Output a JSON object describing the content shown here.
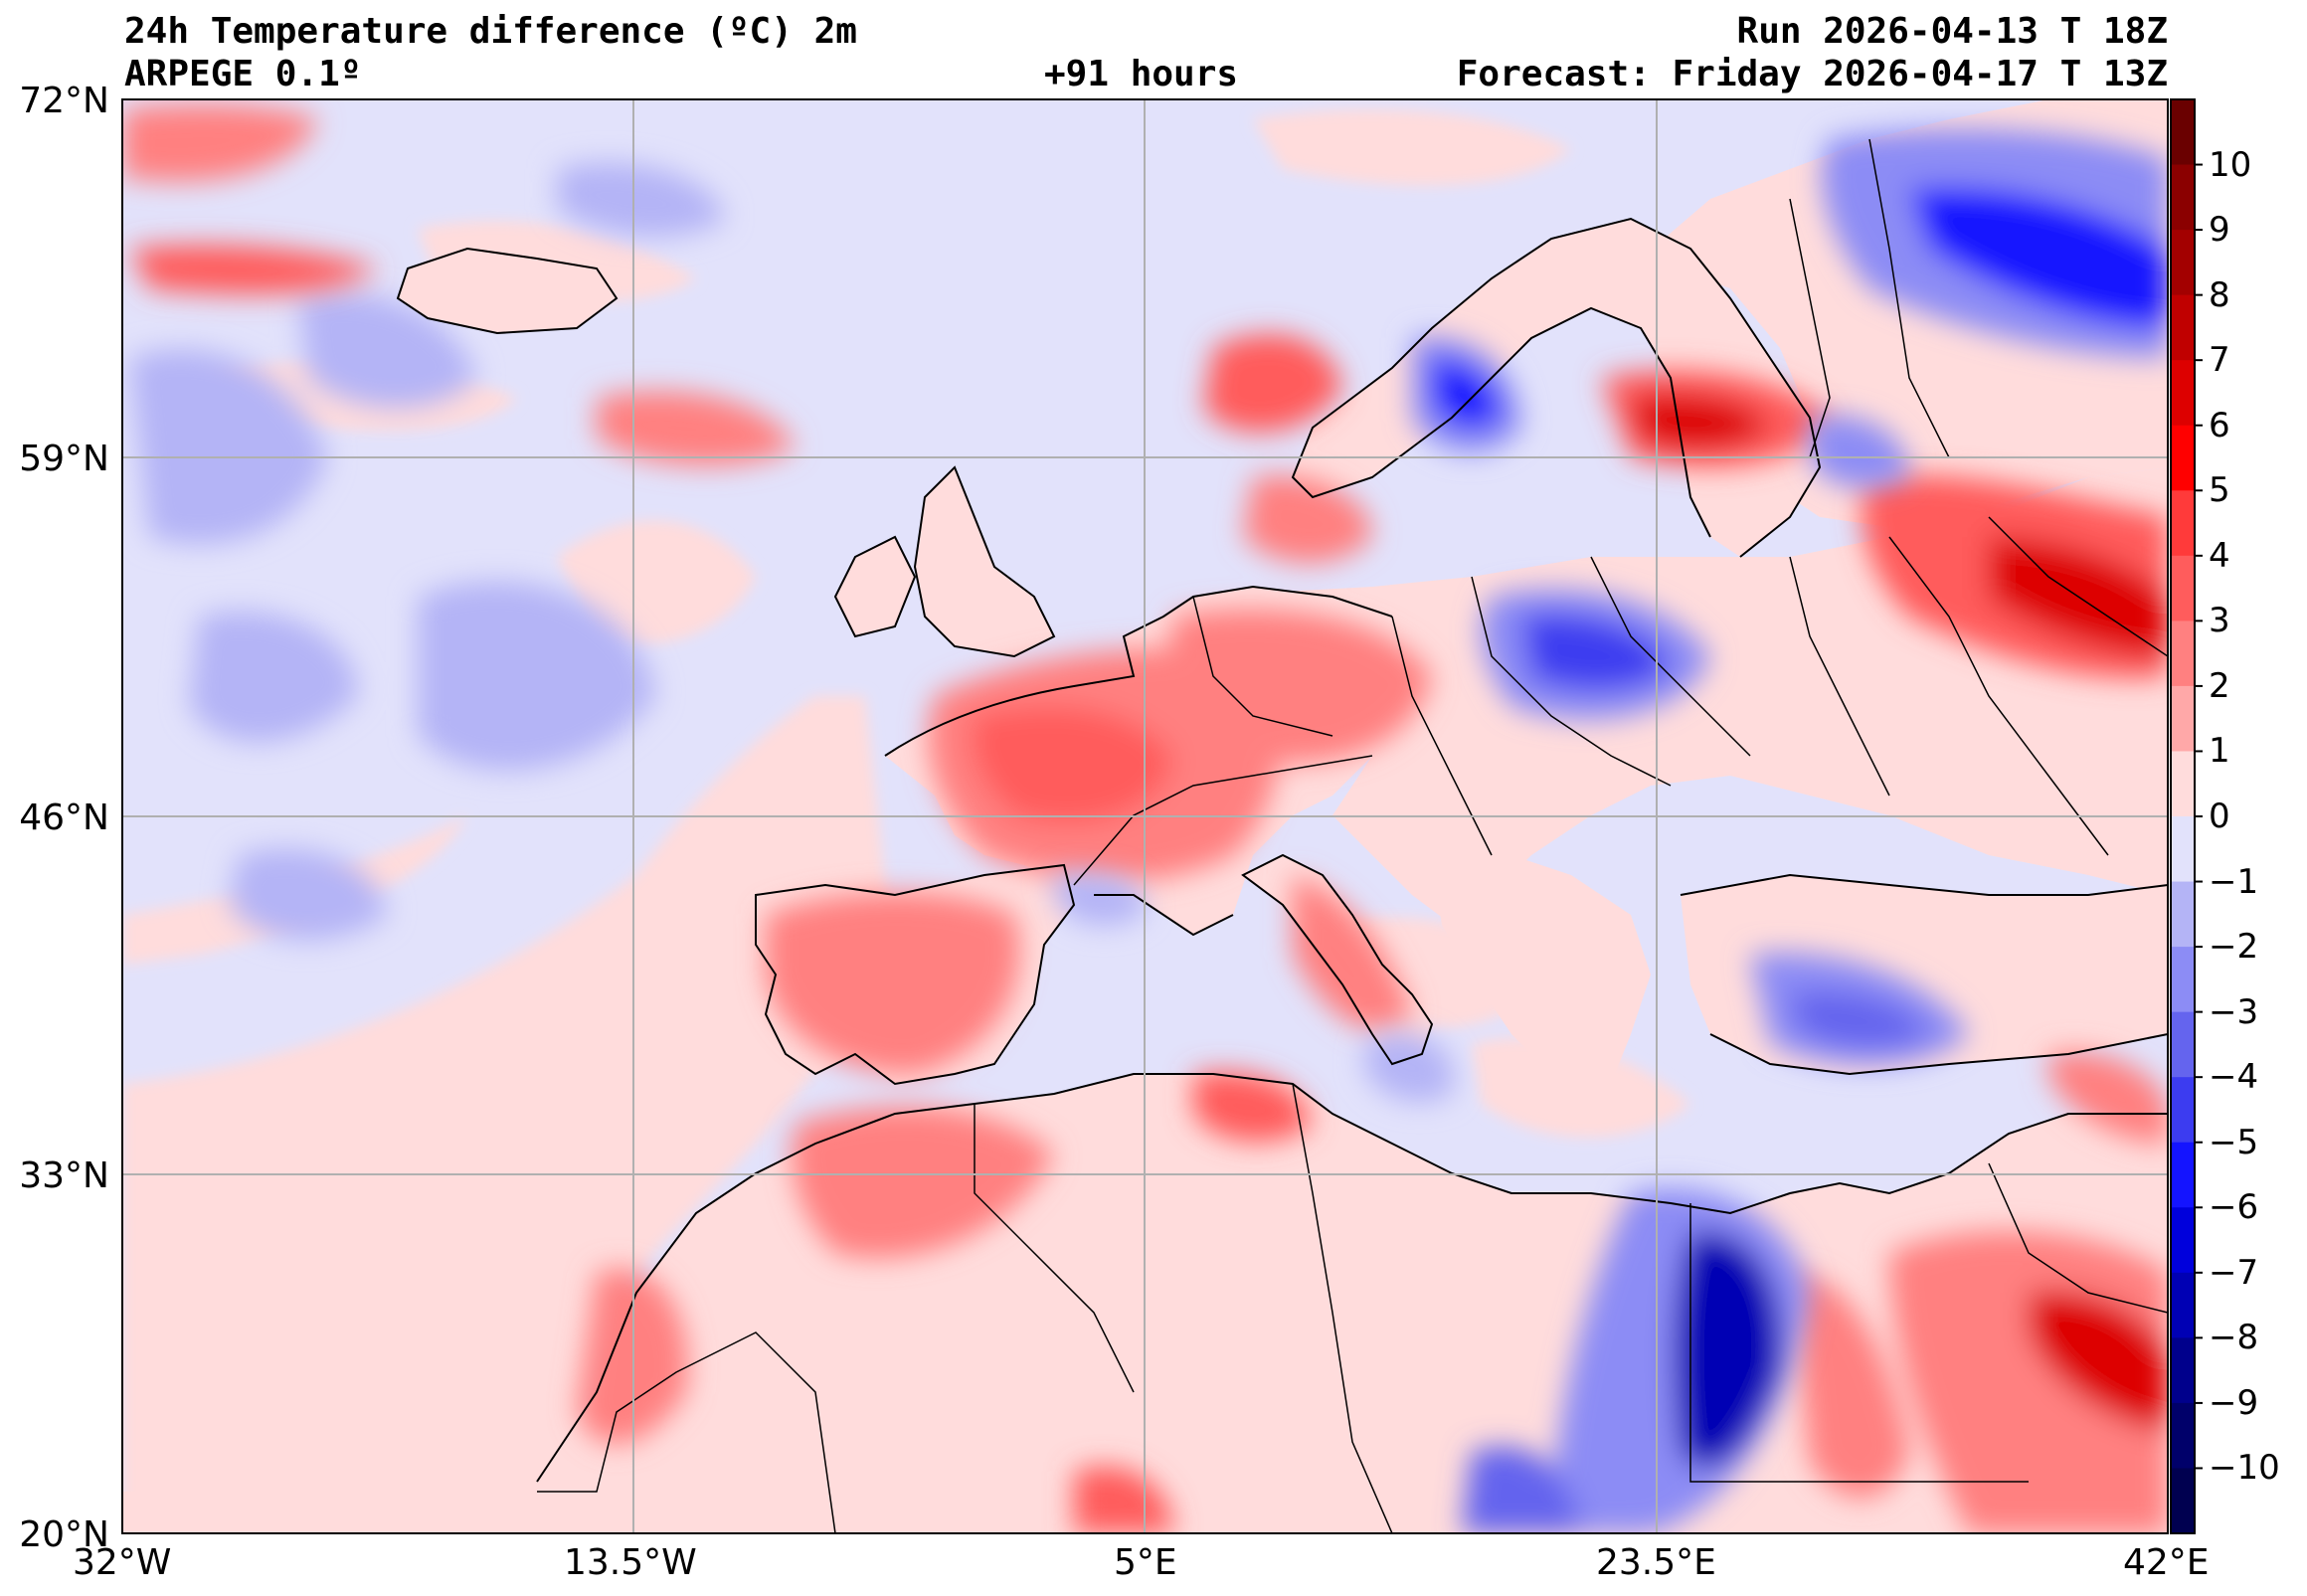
{
  "header": {
    "title": "24h Temperature difference (ºC) 2m",
    "model": "ARPEGE 0.1º",
    "lead": "+91 hours",
    "run": "Run 2026-04-13 T 18Z",
    "forecast": "Forecast: Friday 2026-04-17 T 13Z"
  },
  "axes": {
    "lat_labels": [
      "72°N",
      "59°N",
      "46°N",
      "33°N",
      "20°N"
    ],
    "lon_labels": [
      "32°W",
      "13.5°W",
      "5°E",
      "23.5°E",
      "42°E"
    ],
    "lat_range": [
      20,
      72
    ],
    "lon_range": [
      -32,
      42
    ]
  },
  "colorbar": {
    "ticks": [
      "10",
      "9",
      "8",
      "7",
      "6",
      "5",
      "4",
      "3",
      "2",
      "1",
      "0",
      "−1",
      "−2",
      "−3",
      "−4",
      "−5",
      "−6",
      "−7",
      "−8",
      "−9",
      "−10"
    ],
    "levels": [
      11,
      10,
      9,
      8,
      7,
      6,
      5,
      4,
      3,
      2,
      1,
      0,
      -1,
      -2,
      -3,
      -4,
      -5,
      -6,
      -7,
      -8,
      -9,
      -10,
      -11
    ],
    "colors": [
      "#6a0000",
      "#8b0000",
      "#a30000",
      "#c00000",
      "#dd0000",
      "#ff0000",
      "#ff3a3a",
      "#ff5c5c",
      "#ff8080",
      "#ffa8a8",
      "#ffdcdc",
      "#e2e2fb",
      "#b4b4f6",
      "#8c8cf5",
      "#6464ee",
      "#3c3cf0",
      "#1414ff",
      "#0000dc",
      "#0000b4",
      "#00008c",
      "#00006a",
      "#000050"
    ]
  },
  "legend_colors": {
    "ocean_neutral": "#e2e2fb",
    "land_neutral": "#ffdcdc",
    "coast": "#000000",
    "grid": "#b0b0b0"
  }
}
